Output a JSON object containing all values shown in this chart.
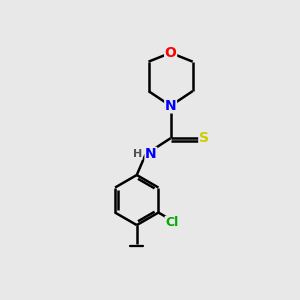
{
  "background_color": "#e8e8e8",
  "bond_color": "#000000",
  "bond_width": 1.8,
  "atom_colors": {
    "O": "#ff0000",
    "N": "#0000ff",
    "S": "#cccc00",
    "Cl": "#00aa00",
    "C": "#000000",
    "H": "#505050"
  },
  "font_size": 9,
  "fig_width": 3.0,
  "fig_height": 3.0,
  "dpi": 100
}
